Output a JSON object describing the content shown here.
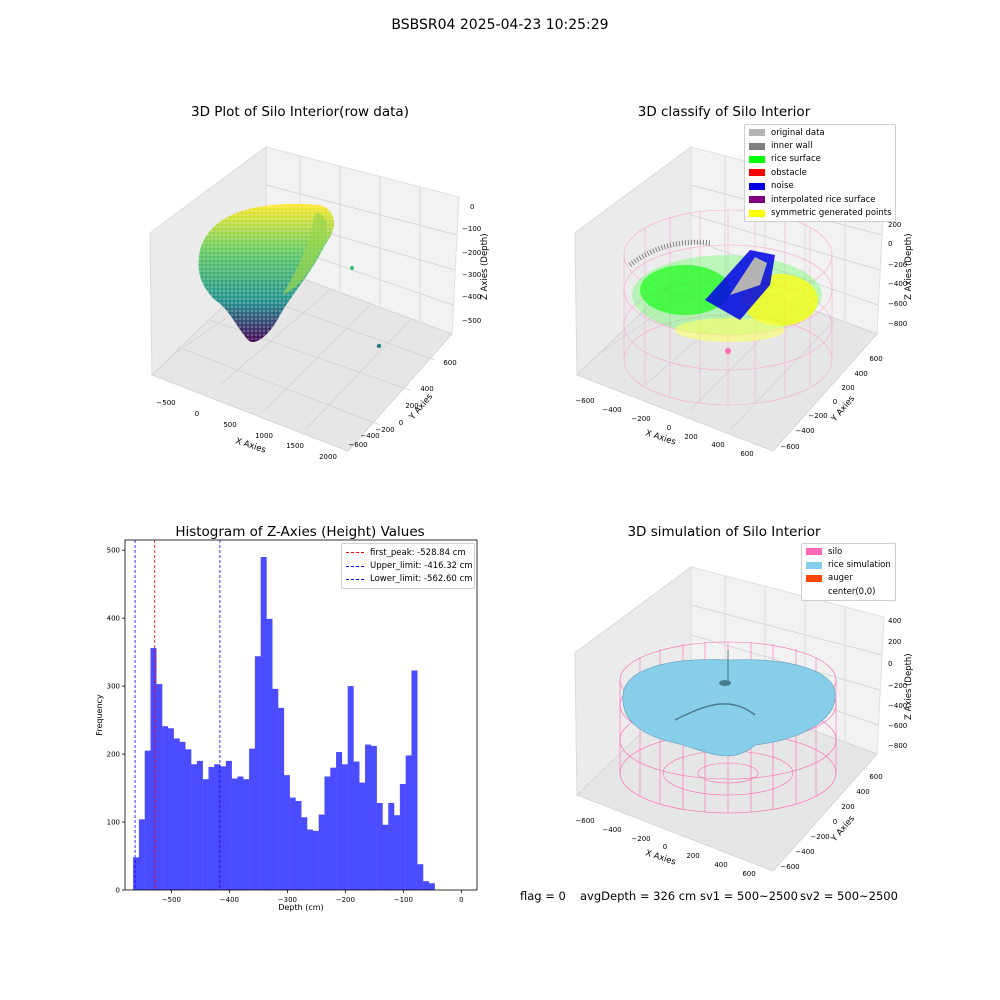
{
  "suptitle": "BSBSR04 2025-04-23 10:25:29",
  "panels": {
    "raw": {
      "title": "3D Plot of Silo Interior(row data)",
      "xlabel": "X Axies",
      "ylabel": "Y Axies",
      "zlabel": "Z Axies (Depth)",
      "xticks": [
        "−500",
        "0",
        "500",
        "1000",
        "1500",
        "2000"
      ],
      "yticks": [
        "600",
        "400",
        "200",
        "0",
        "−200",
        "−400",
        "−600"
      ],
      "zticks": [
        "0",
        "−100",
        "−200",
        "−300",
        "−400",
        "−500"
      ]
    },
    "classify": {
      "title": "3D classify of Silo Interior",
      "xlabel": "X Axies",
      "ylabel": "Y Axies",
      "zlabel": "Z Axies (Depth)",
      "xticks": [
        "−600",
        "−400",
        "−200",
        "0",
        "200",
        "400",
        "600"
      ],
      "yticks": [
        "600",
        "400",
        "200",
        "0",
        "−200",
        "−400",
        "−600"
      ],
      "zticks": [
        "200",
        "0",
        "−200",
        "−400",
        "−600",
        "−800"
      ],
      "legend": [
        {
          "label": "original data",
          "color": "#b3b3b3"
        },
        {
          "label": "inner wall",
          "color": "#808080"
        },
        {
          "label": "rice surface",
          "color": "#00ff00"
        },
        {
          "label": "obstacle",
          "color": "#ff0000"
        },
        {
          "label": "noise",
          "color": "#0000e6"
        },
        {
          "label": "interpolated rice surface",
          "color": "#800080"
        },
        {
          "label": "symmetric generated points",
          "color": "#ffff00"
        }
      ]
    },
    "simulation": {
      "title": "3D simulation of Silo Interior",
      "xlabel": "X Axies",
      "ylabel": "Y Axies",
      "zlabel": "Z Axies (Depth)",
      "xticks": [
        "−600",
        "−400",
        "−200",
        "0",
        "200",
        "400",
        "600"
      ],
      "yticks": [
        "600",
        "400",
        "200",
        "0",
        "−200",
        "−400",
        "−600"
      ],
      "zticks": [
        "400",
        "200",
        "0",
        "−200",
        "−400",
        "−600",
        "−800"
      ],
      "legend": [
        {
          "label": "silo",
          "color": "#ff69b4"
        },
        {
          "label": "rice simulation",
          "color": "#87ceeb"
        },
        {
          "label": "auger",
          "color": "#ff4500"
        },
        {
          "label": "center(0,0)",
          "color": "#ffffff"
        }
      ]
    }
  },
  "bottom_status": {
    "flag": "flag = 0",
    "avg": "avgDepth = 326 cm",
    "sv1": "sv1 = 500~2500",
    "sv2": "sv2 = 500~2500"
  },
  "chart_data": {
    "type": "bar",
    "title": "Histogram of Z-Axies (Height) Values",
    "xlabel": "Depth (cm)",
    "ylabel": "Frequency",
    "xlim": [
      -580,
      27
    ],
    "ylim": [
      0,
      515
    ],
    "xticks": [
      -500,
      -400,
      -300,
      -200,
      -100,
      0
    ],
    "yticks": [
      0,
      100,
      200,
      300,
      400,
      500
    ],
    "bin_start": -566,
    "bin_width": 10,
    "color": "#4b4bff",
    "values": [
      48,
      104,
      205,
      356,
      303,
      241,
      238,
      223,
      218,
      207,
      185,
      190,
      163,
      181,
      185,
      182,
      190,
      164,
      167,
      163,
      208,
      344,
      490,
      399,
      296,
      268,
      169,
      136,
      131,
      107,
      89,
      87,
      111,
      167,
      180,
      203,
      185,
      300,
      189,
      158,
      214,
      212,
      128,
      96,
      128,
      110,
      156,
      198,
      323,
      38,
      13,
      10
    ],
    "vlines": [
      {
        "label": "first_peak: -528.84 cm",
        "x": -528.84,
        "color": "#ff0000"
      },
      {
        "label": "Upper_limit: -416.32 cm",
        "x": -416.32,
        "color": "#0000ff"
      },
      {
        "label": "Lower_limit: -562.60 cm",
        "x": -562.6,
        "color": "#0000ff"
      }
    ]
  }
}
